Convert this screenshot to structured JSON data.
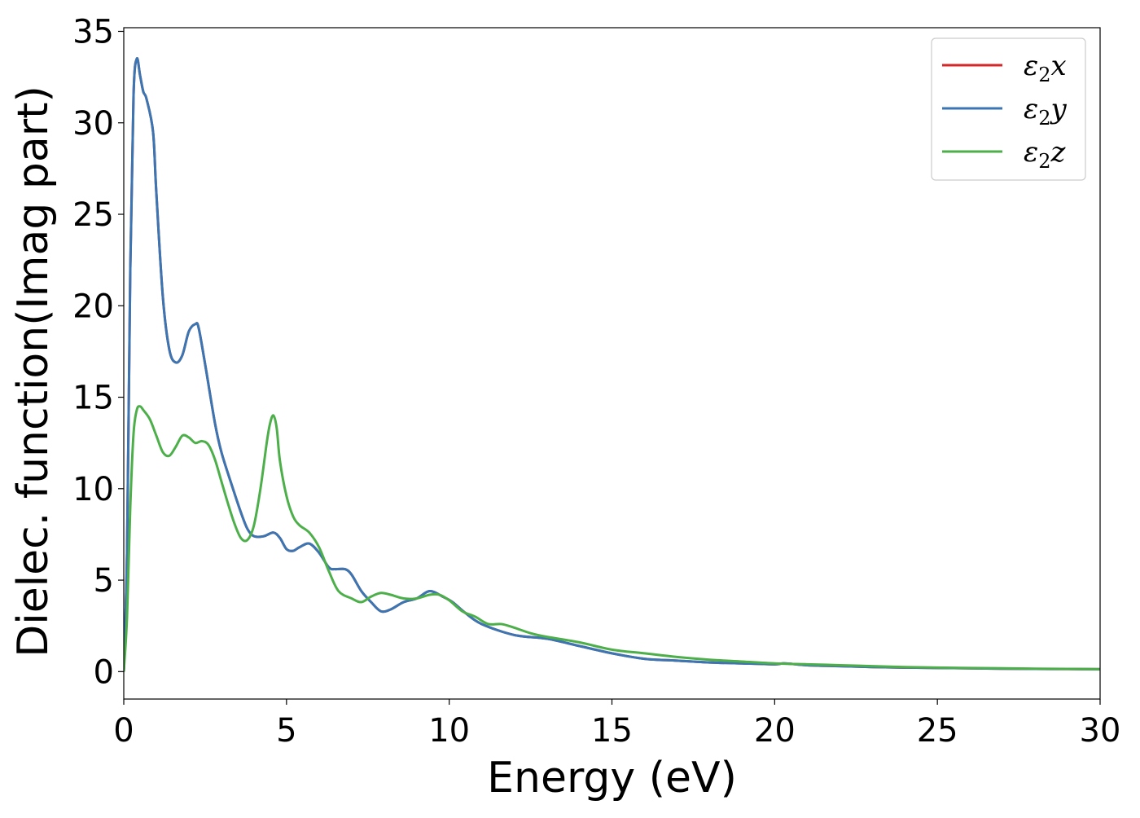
{
  "chart_data": {
    "type": "line",
    "title": "",
    "xlabel": "Energy (eV)",
    "ylabel": "Dielec. function(Imag part)",
    "xlim": [
      0,
      30
    ],
    "ylim": [
      -1.5,
      35.2
    ],
    "xticks": [
      "0",
      "5",
      "10",
      "15",
      "20",
      "25",
      "30"
    ],
    "yticks": [
      "0",
      "5",
      "10",
      "15",
      "20",
      "25",
      "30",
      "35"
    ],
    "grid": false,
    "legend_position": "top-right",
    "series": [
      {
        "name": "ε2x",
        "name_parts": {
          "base": "ε",
          "sub": "2",
          "axis": "x"
        },
        "color": "#d62728",
        "x": [
          0,
          0.1,
          0.2,
          0.3,
          0.4,
          0.5,
          0.6,
          0.7,
          0.9,
          1.0,
          1.2,
          1.4,
          1.6,
          1.8,
          2.0,
          2.2,
          2.3,
          2.5,
          2.8,
          3.0,
          3.3,
          3.6,
          3.8,
          4.0,
          4.3,
          4.6,
          4.8,
          5.0,
          5.2,
          5.4,
          5.7,
          6.0,
          6.3,
          6.5,
          6.8,
          7.0,
          7.3,
          7.6,
          7.9,
          8.2,
          8.6,
          9.0,
          9.4,
          9.8,
          10.1,
          10.5,
          11.0,
          12.0,
          13.0,
          14.0,
          15.0,
          16.0,
          17.0,
          18.0,
          19.0,
          20.0,
          20.3,
          21.0,
          22.0,
          23.0,
          24.0,
          25.0,
          26.0,
          27.0,
          28.0,
          29.0,
          30.0
        ],
        "values": [
          0,
          6.5,
          22,
          31.5,
          33.5,
          32.6,
          31.7,
          31.3,
          29.5,
          26.2,
          20.5,
          17.6,
          16.9,
          17.3,
          18.6,
          19.0,
          18.8,
          16.8,
          13.6,
          12.0,
          10.3,
          8.7,
          7.8,
          7.4,
          7.4,
          7.6,
          7.3,
          6.7,
          6.6,
          6.8,
          7.0,
          6.5,
          5.7,
          5.6,
          5.6,
          5.3,
          4.4,
          3.8,
          3.3,
          3.4,
          3.8,
          4.0,
          4.4,
          4.1,
          3.8,
          3.2,
          2.6,
          2.0,
          1.8,
          1.4,
          1.0,
          0.7,
          0.6,
          0.5,
          0.45,
          0.4,
          0.45,
          0.35,
          0.3,
          0.25,
          0.22,
          0.2,
          0.18,
          0.16,
          0.15,
          0.14,
          0.13
        ]
      },
      {
        "name": "ε2y",
        "name_parts": {
          "base": "ε",
          "sub": "2",
          "axis": "y"
        },
        "color": "#3a76b3",
        "x": [
          0,
          0.1,
          0.2,
          0.3,
          0.4,
          0.5,
          0.6,
          0.7,
          0.9,
          1.0,
          1.2,
          1.4,
          1.6,
          1.8,
          2.0,
          2.2,
          2.3,
          2.5,
          2.8,
          3.0,
          3.3,
          3.6,
          3.8,
          4.0,
          4.3,
          4.6,
          4.8,
          5.0,
          5.2,
          5.4,
          5.7,
          6.0,
          6.3,
          6.5,
          6.8,
          7.0,
          7.3,
          7.6,
          7.9,
          8.2,
          8.6,
          9.0,
          9.4,
          9.8,
          10.1,
          10.5,
          11.0,
          12.0,
          13.0,
          14.0,
          15.0,
          16.0,
          17.0,
          18.0,
          19.0,
          20.0,
          20.3,
          21.0,
          22.0,
          23.0,
          24.0,
          25.0,
          26.0,
          27.0,
          28.0,
          29.0,
          30.0
        ],
        "values": [
          0,
          6.5,
          22,
          31.5,
          33.5,
          32.6,
          31.7,
          31.3,
          29.5,
          26.2,
          20.5,
          17.6,
          16.9,
          17.3,
          18.6,
          19.0,
          18.8,
          16.8,
          13.6,
          12.0,
          10.3,
          8.7,
          7.8,
          7.4,
          7.4,
          7.6,
          7.3,
          6.7,
          6.6,
          6.8,
          7.0,
          6.5,
          5.7,
          5.6,
          5.6,
          5.3,
          4.4,
          3.8,
          3.3,
          3.4,
          3.8,
          4.0,
          4.4,
          4.1,
          3.8,
          3.2,
          2.6,
          2.0,
          1.8,
          1.4,
          1.0,
          0.7,
          0.6,
          0.5,
          0.45,
          0.4,
          0.45,
          0.35,
          0.3,
          0.25,
          0.22,
          0.2,
          0.18,
          0.16,
          0.15,
          0.14,
          0.13
        ]
      },
      {
        "name": "ε2z",
        "name_parts": {
          "base": "ε",
          "sub": "2",
          "axis": "z"
        },
        "color": "#4daf4a",
        "x": [
          0,
          0.1,
          0.2,
          0.3,
          0.4,
          0.5,
          0.6,
          0.8,
          1.0,
          1.2,
          1.4,
          1.6,
          1.8,
          2.0,
          2.2,
          2.4,
          2.6,
          2.8,
          3.0,
          3.2,
          3.4,
          3.6,
          3.8,
          4.0,
          4.2,
          4.4,
          4.5,
          4.6,
          4.7,
          4.8,
          5.0,
          5.2,
          5.4,
          5.7,
          6.0,
          6.3,
          6.6,
          7.0,
          7.3,
          7.6,
          7.9,
          8.2,
          8.6,
          9.0,
          9.4,
          9.7,
          10.0,
          10.4,
          10.8,
          11.2,
          11.6,
          12.0,
          12.5,
          13.0,
          14.0,
          15.0,
          16.0,
          17.0,
          18.0,
          19.0,
          20.0,
          21.0,
          22.0,
          23.0,
          24.0,
          25.0,
          26.0,
          27.0,
          28.0,
          29.0,
          30.0
        ],
        "values": [
          0,
          3,
          9,
          13,
          14.3,
          14.5,
          14.3,
          13.8,
          12.9,
          12.0,
          11.8,
          12.3,
          12.9,
          12.8,
          12.5,
          12.6,
          12.4,
          11.6,
          10.4,
          9.2,
          8.1,
          7.3,
          7.2,
          8.0,
          10.0,
          12.6,
          13.6,
          14.0,
          13.3,
          11.5,
          9.6,
          8.5,
          8.0,
          7.6,
          6.8,
          5.5,
          4.4,
          4.0,
          3.8,
          4.1,
          4.3,
          4.2,
          4.0,
          4.0,
          4.2,
          4.2,
          3.9,
          3.3,
          3.0,
          2.6,
          2.6,
          2.4,
          2.1,
          1.9,
          1.6,
          1.2,
          1.0,
          0.8,
          0.65,
          0.55,
          0.45,
          0.4,
          0.35,
          0.3,
          0.25,
          0.22,
          0.2,
          0.18,
          0.16,
          0.15,
          0.13
        ]
      }
    ]
  }
}
